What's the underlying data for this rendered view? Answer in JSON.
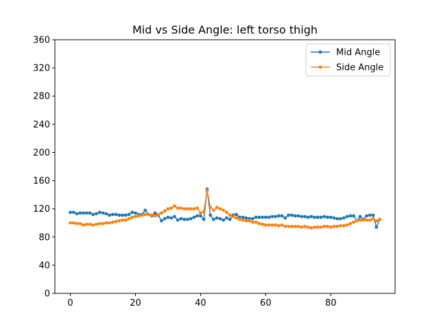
{
  "chart_data": {
    "type": "line",
    "title": "Mid vs Side Angle: left torso thigh",
    "xlabel": "",
    "ylabel": "",
    "xlim": [
      -4.75,
      99.75
    ],
    "ylim": [
      0,
      360
    ],
    "x_ticks": [
      0,
      20,
      40,
      60,
      80
    ],
    "y_ticks": [
      0,
      40,
      80,
      120,
      160,
      200,
      240,
      280,
      320,
      360
    ],
    "grid": false,
    "legend_position": "top-right",
    "x": [
      0,
      1,
      2,
      3,
      4,
      5,
      6,
      7,
      8,
      9,
      10,
      11,
      12,
      13,
      14,
      15,
      16,
      17,
      18,
      19,
      20,
      21,
      22,
      23,
      24,
      25,
      26,
      27,
      28,
      29,
      30,
      31,
      32,
      33,
      34,
      35,
      36,
      37,
      38,
      39,
      40,
      41,
      42,
      43,
      44,
      45,
      46,
      47,
      48,
      49,
      50,
      51,
      52,
      53,
      54,
      55,
      56,
      57,
      58,
      59,
      60,
      61,
      62,
      63,
      64,
      65,
      66,
      67,
      68,
      69,
      70,
      71,
      72,
      73,
      74,
      75,
      76,
      77,
      78,
      79,
      80,
      81,
      82,
      83,
      84,
      85,
      86,
      87,
      88,
      89,
      90,
      91,
      92,
      93,
      94,
      95
    ],
    "series": [
      {
        "name": "Mid Angle",
        "color": "#1f77b4",
        "values": [
          115,
          115,
          113,
          114,
          114,
          114,
          114,
          112,
          113,
          115,
          114,
          113,
          111,
          112,
          112,
          111,
          111,
          111,
          112,
          115,
          114,
          112,
          112,
          118,
          112,
          110,
          114,
          111,
          103,
          106,
          108,
          107,
          109,
          104,
          106,
          105,
          105,
          106,
          108,
          110,
          110,
          105,
          148,
          111,
          105,
          107,
          106,
          104,
          107,
          105,
          111,
          112,
          108,
          108,
          107,
          106,
          106,
          108,
          108,
          108,
          108,
          108,
          109,
          109,
          110,
          110,
          107,
          111,
          111,
          110,
          110,
          109,
          109,
          108,
          109,
          108,
          108,
          108,
          109,
          108,
          108,
          107,
          106,
          106,
          107,
          109,
          110,
          110,
          103,
          109,
          105,
          110,
          111,
          111,
          94,
          105
        ]
      },
      {
        "name": "Side Angle",
        "color": "#ff7f0e",
        "values": [
          100,
          100,
          99,
          99,
          97,
          98,
          98,
          97,
          98,
          99,
          99,
          100,
          100,
          101,
          102,
          103,
          104,
          104,
          106,
          108,
          109,
          110,
          111,
          112,
          112,
          111,
          110,
          112,
          114,
          117,
          120,
          121,
          124,
          121,
          121,
          120,
          120,
          120,
          120,
          121,
          114,
          116,
          146,
          122,
          118,
          122,
          120,
          118,
          115,
          111,
          109,
          107,
          105,
          104,
          103,
          103,
          101,
          101,
          99,
          98,
          97,
          97,
          97,
          97,
          96,
          97,
          95,
          95,
          95,
          95,
          95,
          94,
          95,
          94,
          93,
          94,
          94,
          94,
          95,
          95,
          94,
          95,
          95,
          96,
          96,
          97,
          99,
          101,
          103,
          104,
          104,
          104,
          104,
          106,
          103,
          105
        ]
      }
    ]
  }
}
